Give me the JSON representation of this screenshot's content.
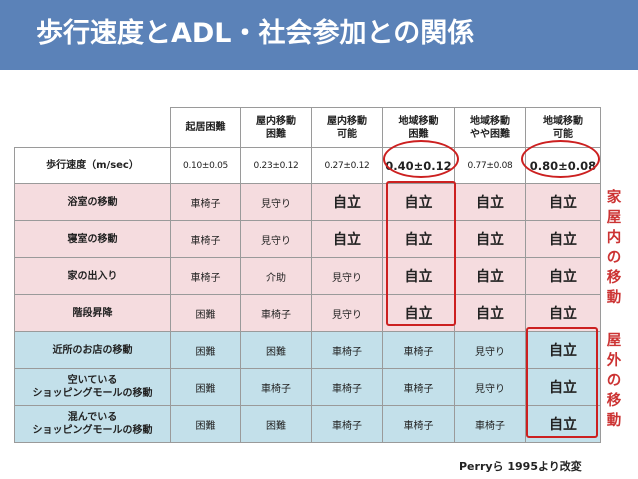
{
  "title": "歩行速度とADL・社会参加との関係",
  "table": {
    "headers": [
      [
        "起居困難"
      ],
      [
        "屋内移動",
        "困難"
      ],
      [
        "屋内移動",
        "可能"
      ],
      [
        "地域移動",
        "困難"
      ],
      [
        "地域移動",
        "やや困難"
      ],
      [
        "地域移動",
        "可能"
      ]
    ],
    "speed_row": {
      "label": "歩行速度（m/sec）",
      "values": [
        "0.10±0.05",
        "0.23±0.12",
        "0.27±0.12",
        "0.40±0.12",
        "0.77±0.08",
        "0.80±0.08"
      ]
    },
    "indoor_rows": [
      {
        "label": [
          "浴室の移動"
        ],
        "values": [
          "車椅子",
          "見守り",
          "自立",
          "自立",
          "自立",
          "自立"
        ]
      },
      {
        "label": [
          "寝室の移動"
        ],
        "values": [
          "車椅子",
          "見守り",
          "自立",
          "自立",
          "自立",
          "自立"
        ]
      },
      {
        "label": [
          "家の出入り"
        ],
        "values": [
          "車椅子",
          "介助",
          "見守り",
          "自立",
          "自立",
          "自立"
        ]
      },
      {
        "label": [
          "階段昇降"
        ],
        "values": [
          "困難",
          "車椅子",
          "見守り",
          "自立",
          "自立",
          "自立"
        ]
      }
    ],
    "outdoor_rows": [
      {
        "label": [
          "近所のお店の移動"
        ],
        "values": [
          "困難",
          "困難",
          "車椅子",
          "車椅子",
          "見守り",
          "自立"
        ]
      },
      {
        "label": [
          "空いている",
          "ショッピングモールの移動"
        ],
        "values": [
          "困難",
          "車椅子",
          "車椅子",
          "車椅子",
          "見守り",
          "自立"
        ]
      },
      {
        "label": [
          "混んでいる",
          "ショッピングモールの移動"
        ],
        "values": [
          "困難",
          "困難",
          "車椅子",
          "車椅子",
          "車椅子",
          "自立"
        ]
      }
    ]
  },
  "side_labels": {
    "indoor": [
      "家",
      "屋",
      "内",
      "の",
      "移",
      "動"
    ],
    "outdoor": [
      "屋",
      "外",
      "の",
      "移",
      "動"
    ]
  },
  "citation": "Perryら 1995より改変",
  "colors": {
    "title_bar": "#5b82b8",
    "indoor_row_bg": "#f5dcdf",
    "outdoor_row_bg": "#c3e0ea",
    "highlight": "#cc2020",
    "side_label": "#cc3333"
  }
}
